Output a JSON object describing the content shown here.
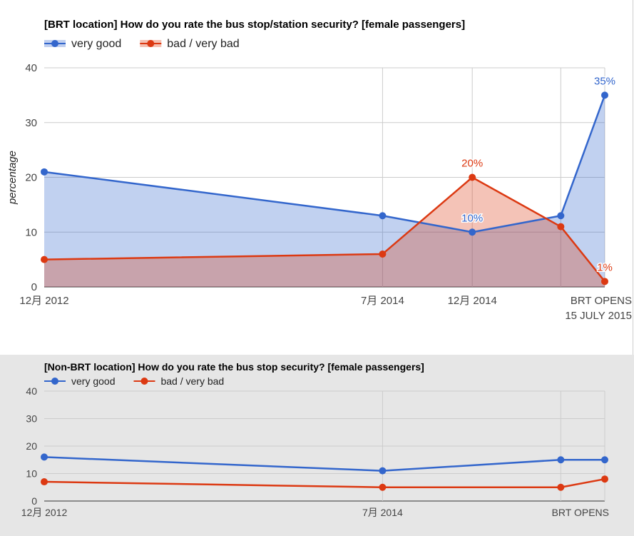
{
  "chart_data": [
    {
      "type": "area",
      "title": "[BRT location] How do you rate the bus stop/station security? [female passengers]",
      "xlabel": "",
      "ylabel": "percentage",
      "ylim": [
        0,
        40
      ],
      "yticks": [
        0,
        10,
        20,
        30,
        40
      ],
      "x": [
        "2012-12",
        "2014-07",
        "2014-12",
        "2015-05",
        "2015-07-15"
      ],
      "xtick_labels": [
        {
          "x": "2012-12",
          "lines": [
            "12月 2012"
          ]
        },
        {
          "x": "2014-07",
          "lines": [
            "7月 2014"
          ]
        },
        {
          "x": "2014-12",
          "lines": [
            "12月 2014"
          ]
        },
        {
          "x": "2015-07-15",
          "lines": [
            "BRT OPENS",
            "15 JULY 2015"
          ]
        }
      ],
      "legend_position": "top-left",
      "grid": true,
      "series": [
        {
          "name": "very good",
          "color": "#3366cc",
          "fill": "#c0cfef",
          "values": [
            21,
            13,
            10,
            13,
            35
          ],
          "point_labels": [
            null,
            null,
            "10%",
            null,
            "35%"
          ]
        },
        {
          "name": "bad / very bad",
          "color": "#dc3912",
          "fill": "#f5c0b2",
          "values": [
            5,
            6,
            20,
            11,
            1
          ],
          "point_labels": [
            null,
            null,
            "20%",
            null,
            "1%"
          ]
        }
      ]
    },
    {
      "type": "line",
      "title": "[Non-BRT location] How do you rate the bus stop security? [female passengers]",
      "xlabel": "",
      "ylabel": "",
      "ylim": [
        0,
        40
      ],
      "yticks": [
        0,
        10,
        20,
        30,
        40
      ],
      "x": [
        "2012-12",
        "2014-07",
        "2015-05",
        "2015-07-15"
      ],
      "xtick_labels": [
        {
          "x": "2012-12",
          "lines": [
            "12月 2012"
          ]
        },
        {
          "x": "2014-07",
          "lines": [
            "7月 2014"
          ]
        },
        {
          "x": "2015-07-15",
          "lines": [
            "BRT OPENS"
          ]
        }
      ],
      "legend_position": "top-left",
      "grid": true,
      "series": [
        {
          "name": "very good",
          "color": "#3366cc",
          "values": [
            16,
            11,
            15,
            15
          ]
        },
        {
          "name": "bad / very bad",
          "color": "#dc3912",
          "values": [
            7,
            5,
            5,
            8
          ]
        }
      ]
    }
  ]
}
